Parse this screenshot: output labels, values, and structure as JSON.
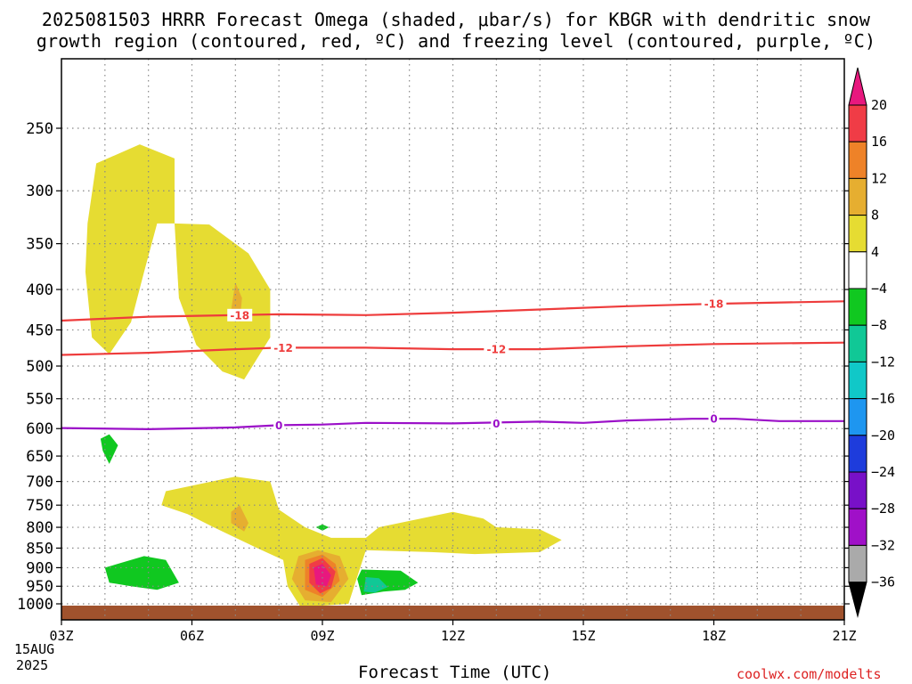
{
  "title_line1": "2025081503 HRRR Forecast Omega (shaded, μbar/s) for KBGR with dendritic snow",
  "title_line2": "growth region (contoured, red, ºC) and freezing level (contoured, purple, ºC)",
  "xlabel": "Forecast Time (UTC)",
  "date_line1": "15AUG",
  "date_line2": "2025",
  "credit": "coolwx.com/modelts",
  "chart_data": {
    "type": "heatmap",
    "title": "2025081503 HRRR Forecast Omega (shaded, μbar/s) for KBGR with dendritic snow growth region (contoured, red, ºC) and freezing level (contoured, purple, ºC)",
    "xlabel": "Forecast Time (UTC)",
    "ylabel": "",
    "x_ticks": [
      "03Z",
      "06Z",
      "09Z",
      "12Z",
      "15Z",
      "18Z",
      "21Z"
    ],
    "x_range_hours": [
      3,
      21
    ],
    "y_ticks": [
      250,
      300,
      350,
      400,
      450,
      500,
      550,
      600,
      650,
      700,
      750,
      800,
      850,
      900,
      950,
      1000
    ],
    "y_axis": "pressure (hPa), log scale, reversed",
    "y_range": [
      200,
      1050
    ],
    "grid": true,
    "colorbar": {
      "labels": [
        "20",
        "16",
        "12",
        "8",
        "4",
        "−4",
        "−8",
        "−12",
        "−16",
        "−20",
        "−24",
        "−28",
        "−32",
        "−36"
      ],
      "colors": [
        "#e8187e",
        "#f03c46",
        "#ee8228",
        "#e6ae30",
        "#e6dc32",
        "#ffffff",
        "#10c820",
        "#10c896",
        "#10c8c8",
        "#1e96f0",
        "#1e3cdc",
        "#7810c8",
        "#a010c8",
        "#aaaaaa",
        "#000000"
      ]
    },
    "contours": [
      {
        "name": "dendritic snow growth -18",
        "label": "-18",
        "color": "#ee3c3c",
        "points": [
          [
            3.0,
            438
          ],
          [
            5.0,
            433
          ],
          [
            7.0,
            431
          ],
          [
            8.0,
            430
          ],
          [
            10.0,
            431
          ],
          [
            12.0,
            428
          ],
          [
            14.0,
            424
          ],
          [
            16.0,
            420
          ],
          [
            18.0,
            417
          ],
          [
            21.0,
            414
          ]
        ],
        "label_at": [
          [
            7.1,
            431
          ],
          [
            18.0,
            417
          ]
        ]
      },
      {
        "name": "dendritic snow growth -12",
        "label": "-12",
        "color": "#ee3c3c",
        "points": [
          [
            3.0,
            484
          ],
          [
            5.0,
            481
          ],
          [
            7.0,
            476
          ],
          [
            8.0,
            474
          ],
          [
            10.0,
            474
          ],
          [
            12.0,
            476
          ],
          [
            14.0,
            476
          ],
          [
            16.0,
            472
          ],
          [
            18.0,
            469
          ],
          [
            21.0,
            467
          ]
        ],
        "label_at": [
          [
            8.1,
            474
          ],
          [
            13.0,
            476
          ]
        ]
      },
      {
        "name": "freezing level",
        "label": "0",
        "color": "#9b10c8",
        "points": [
          [
            3.0,
            599
          ],
          [
            5.0,
            601
          ],
          [
            7.0,
            598
          ],
          [
            8.0,
            594
          ],
          [
            9.0,
            593
          ],
          [
            10.0,
            590
          ],
          [
            12.0,
            591
          ],
          [
            14.0,
            588
          ],
          [
            15.0,
            590
          ],
          [
            16.0,
            586
          ],
          [
            17.5,
            583
          ],
          [
            18.5,
            583
          ],
          [
            19.5,
            587
          ],
          [
            21.0,
            587
          ]
        ],
        "label_at": [
          [
            8.0,
            594
          ],
          [
            13.0,
            591
          ],
          [
            18.0,
            583
          ]
        ]
      }
    ],
    "omega_regions": [
      {
        "level": "4 to 8",
        "color": "#e6dc32",
        "points": [
          [
            3.6,
            330
          ],
          [
            3.8,
            277
          ],
          [
            4.8,
            262
          ],
          [
            5.6,
            273
          ],
          [
            5.6,
            330
          ],
          [
            5.2,
            330
          ],
          [
            4.9,
            380
          ],
          [
            4.6,
            440
          ],
          [
            4.1,
            483
          ],
          [
            3.7,
            460
          ],
          [
            3.55,
            380
          ]
        ]
      },
      {
        "level": "4 to 8",
        "color": "#e6dc32",
        "points": [
          [
            5.6,
            330
          ],
          [
            6.4,
            331
          ],
          [
            7.3,
            360
          ],
          [
            7.8,
            400
          ],
          [
            7.8,
            460
          ],
          [
            7.2,
            520
          ],
          [
            6.7,
            508
          ],
          [
            6.1,
            470
          ],
          [
            5.7,
            410
          ]
        ]
      },
      {
        "level": "8 to 12",
        "color": "#e6ae30",
        "points": [
          [
            7.0,
            392
          ],
          [
            7.15,
            410
          ],
          [
            7.1,
            440
          ],
          [
            6.9,
            425
          ]
        ]
      },
      {
        "level": "4 to 8",
        "color": "#e6dc32",
        "points": [
          [
            5.4,
            720
          ],
          [
            7.0,
            690
          ],
          [
            7.8,
            700
          ],
          [
            8.0,
            760
          ],
          [
            8.6,
            800
          ],
          [
            9.2,
            825
          ],
          [
            10.0,
            825
          ],
          [
            10.3,
            800
          ],
          [
            12.0,
            765
          ],
          [
            12.7,
            780
          ],
          [
            13.0,
            800
          ],
          [
            14.0,
            805
          ],
          [
            14.5,
            830
          ],
          [
            14.0,
            860
          ],
          [
            12.5,
            865
          ],
          [
            11.5,
            860
          ],
          [
            10.0,
            855
          ],
          [
            9.6,
            1000
          ],
          [
            8.5,
            1010
          ],
          [
            8.2,
            950
          ],
          [
            8.1,
            880
          ],
          [
            7.5,
            850
          ],
          [
            6.5,
            800
          ],
          [
            5.9,
            770
          ],
          [
            5.3,
            750
          ]
        ]
      },
      {
        "level": "8 to 12",
        "color": "#e6ae30",
        "points": [
          [
            6.9,
            765
          ],
          [
            7.1,
            750
          ],
          [
            7.3,
            790
          ],
          [
            7.2,
            810
          ],
          [
            6.9,
            790
          ]
        ]
      },
      {
        "level": "8 to 12",
        "color": "#e6ae30",
        "points": [
          [
            8.45,
            870
          ],
          [
            8.9,
            855
          ],
          [
            9.4,
            870
          ],
          [
            9.6,
            930
          ],
          [
            9.2,
            995
          ],
          [
            8.6,
            990
          ],
          [
            8.3,
            930
          ]
        ]
      },
      {
        "level": "12 to 16",
        "color": "#ee8228",
        "points": [
          [
            8.6,
            880
          ],
          [
            9.0,
            866
          ],
          [
            9.3,
            890
          ],
          [
            9.4,
            935
          ],
          [
            9.0,
            980
          ],
          [
            8.6,
            960
          ]
        ]
      },
      {
        "level": "16 to 20",
        "color": "#f03c46",
        "points": [
          [
            8.7,
            890
          ],
          [
            9.0,
            875
          ],
          [
            9.3,
            910
          ],
          [
            9.2,
            955
          ],
          [
            8.95,
            970
          ],
          [
            8.7,
            940
          ]
        ]
      },
      {
        "level": "> 20",
        "color": "#e8187e",
        "points": [
          [
            8.8,
            900
          ],
          [
            9.0,
            890
          ],
          [
            9.2,
            920
          ],
          [
            9.1,
            950
          ],
          [
            8.85,
            945
          ]
        ]
      },
      {
        "level": "-4 to -8",
        "color": "#10c820",
        "points": [
          [
            4.0,
            900
          ],
          [
            4.9,
            870
          ],
          [
            5.4,
            880
          ],
          [
            5.7,
            940
          ],
          [
            5.2,
            960
          ],
          [
            4.6,
            950
          ],
          [
            4.1,
            940
          ]
        ]
      },
      {
        "level": "-4 to -8",
        "color": "#10c820",
        "points": [
          [
            9.9,
            905
          ],
          [
            10.8,
            908
          ],
          [
            11.2,
            940
          ],
          [
            10.9,
            960
          ],
          [
            10.4,
            965
          ],
          [
            9.9,
            975
          ],
          [
            9.8,
            930
          ]
        ]
      },
      {
        "level": "-8 to -12",
        "color": "#10c896",
        "points": [
          [
            10.0,
            925
          ],
          [
            10.3,
            928
          ],
          [
            10.5,
            952
          ],
          [
            10.2,
            968
          ],
          [
            9.95,
            965
          ]
        ]
      },
      {
        "level": "-4 to -8",
        "color": "#10c820",
        "points": [
          [
            3.9,
            618
          ],
          [
            4.1,
            610
          ],
          [
            4.3,
            630
          ],
          [
            4.1,
            665
          ],
          [
            3.95,
            640
          ]
        ]
      },
      {
        "level": "-4 to -8",
        "color": "#10c820",
        "points": [
          [
            8.85,
            800
          ],
          [
            9.0,
            793
          ],
          [
            9.15,
            800
          ],
          [
            9.0,
            808
          ]
        ]
      }
    ],
    "terrain": {
      "color": "#a0522d",
      "surface_pressure_hPa": 1013
    }
  }
}
